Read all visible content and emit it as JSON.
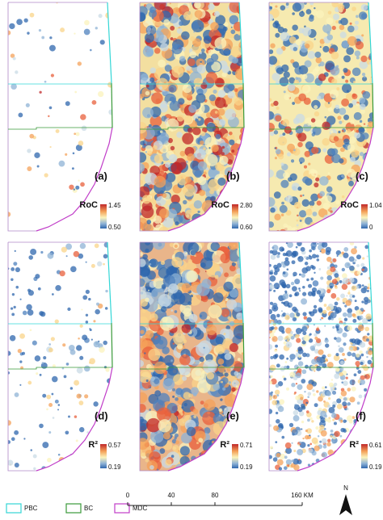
{
  "panels": [
    {
      "label": "(a)",
      "legend_title": "RoC",
      "max_label": "1.45",
      "min_label": "0.50"
    },
    {
      "label": "(b)",
      "legend_title": "RoC",
      "max_label": "2.80",
      "min_label": "0.60"
    },
    {
      "label": "(c)",
      "legend_title": "RoC",
      "max_label": "1.04",
      "min_label": "0"
    },
    {
      "label": "(d)",
      "legend_title": "R²",
      "max_label": "0.57",
      "min_label": "0.19"
    },
    {
      "label": "(e)",
      "legend_title": "R²",
      "max_label": "0.71",
      "min_label": "0.19"
    },
    {
      "label": "(f)",
      "legend_title": "R²",
      "max_label": "0.61",
      "min_label": "0.19"
    }
  ],
  "legend": {
    "items": [
      "PBC",
      "BC",
      "MDC"
    ]
  },
  "scale_bar": {
    "ticks": [
      "0",
      "40",
      "80",
      "160 KM"
    ]
  },
  "north": "N"
}
